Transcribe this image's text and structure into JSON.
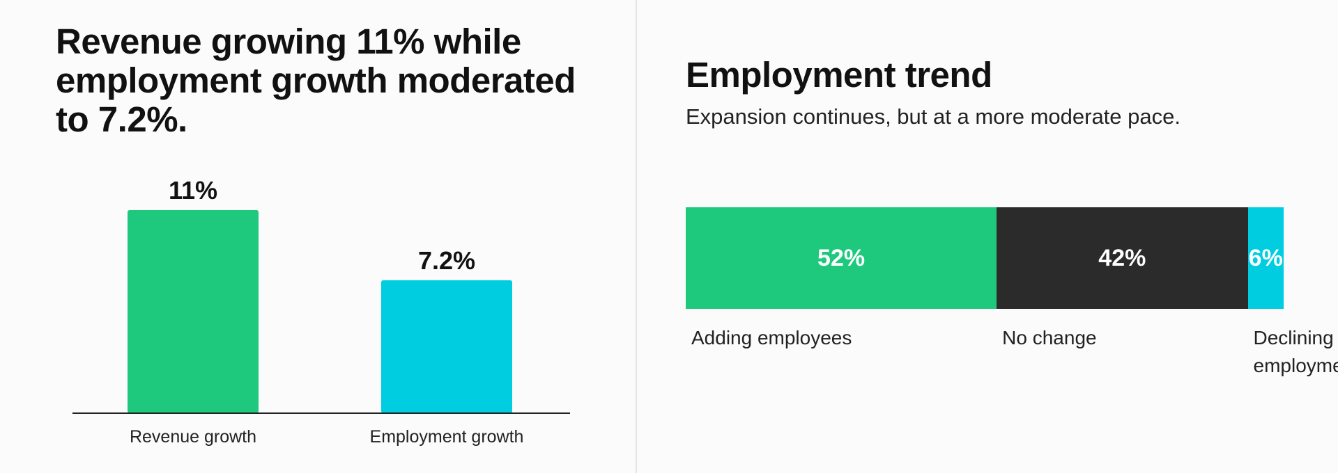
{
  "left_panel": {
    "headline": "Revenue growing 11% while employment growth moderated to 7.2%."
  },
  "right_panel": {
    "title": "Employment trend",
    "subtitle": "Expansion continues, but at a more moderate pace."
  },
  "chart_data": [
    {
      "type": "bar",
      "title": "Revenue growing 11% while employment growth moderated to 7.2%.",
      "categories": [
        "Revenue growth",
        "Employment growth"
      ],
      "values": [
        11,
        7.2
      ],
      "data_labels": [
        "11%",
        "7.2%"
      ],
      "colors": [
        "#1ec97e",
        "#00cde0"
      ],
      "ylim": [
        0,
        11
      ],
      "grid": false,
      "xlabel": "",
      "ylabel": ""
    },
    {
      "type": "bar",
      "orientation": "horizontal-stacked",
      "title": "Employment trend",
      "subtitle": "Expansion continues, but at a more moderate pace.",
      "categories": [
        "Adding employees",
        "No change",
        "Declining employment"
      ],
      "values": [
        52,
        42,
        6
      ],
      "data_labels": [
        "52%",
        "42%",
        "6%"
      ],
      "colors": [
        "#1ec97e",
        "#2b2b2b",
        "#00cde0"
      ],
      "total": 100,
      "grid": false
    }
  ]
}
